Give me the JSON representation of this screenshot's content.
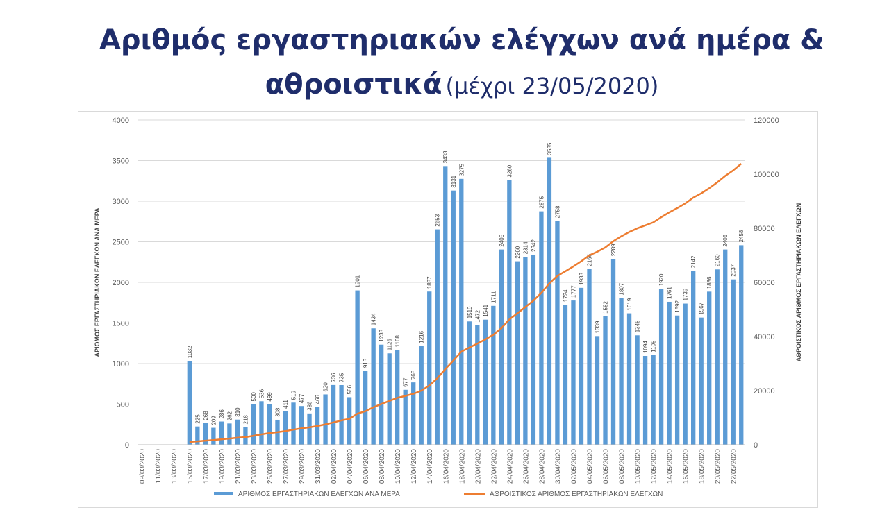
{
  "title": {
    "main_line1": "Αριθμός εργαστηριακών ελέγχων ανά ημέρα &",
    "main_line2": "αθροιστικά",
    "sub": "(μέχρι 23/05/2020)"
  },
  "colors": {
    "bars": "#5b9bd5",
    "line": "#ed7d31",
    "title": "#1f2d6b",
    "grid": "#d9d9d9",
    "axis_text": "#595959"
  },
  "chart_data": {
    "type": "bar",
    "title": "",
    "xlabel": "",
    "ylabel": "ΑΡΙΘΜΟΣ ΕΡΓΑΣΤΗΡΙΑΚΩΝ ΕΛΕΓΧΩΝ ΑΝΑ ΜΕΡΑ",
    "y2label": "ΑΘΡΟΙΣΤΙΚΟΣ ΑΡΙΘΜΟΣ ΕΡΓΑΣΤΗΡΙΑΚΩΝ ΕΛΕΓΧΩΝ",
    "ylim": [
      0,
      4000
    ],
    "y2lim": [
      0,
      120000
    ],
    "yticks": [
      0,
      500,
      1000,
      1500,
      2000,
      2500,
      3000,
      3500,
      4000
    ],
    "y2ticks": [
      0,
      20000,
      40000,
      60000,
      80000,
      100000,
      120000
    ],
    "grid": true,
    "legend_position": "bottom",
    "categories": [
      "09/03/2020",
      "10/03/2020",
      "11/03/2020",
      "12/03/2020",
      "13/03/2020",
      "14/03/2020",
      "15/03/2020",
      "16/03/2020",
      "17/03/2020",
      "18/03/2020",
      "19/03/2020",
      "20/03/2020",
      "21/03/2020",
      "22/03/2020",
      "23/03/2020",
      "24/03/2020",
      "25/03/2020",
      "26/03/2020",
      "27/03/2020",
      "28/03/2020",
      "29/03/2020",
      "30/03/2020",
      "31/03/2020",
      "01/04/2020",
      "02/04/2020",
      "03/04/2020",
      "04/04/2020",
      "05/04/2020",
      "06/04/2020",
      "07/04/2020",
      "08/04/2020",
      "09/04/2020",
      "10/04/2020",
      "11/04/2020",
      "12/04/2020",
      "13/04/2020",
      "14/04/2020",
      "15/04/2020",
      "16/04/2020",
      "17/04/2020",
      "18/04/2020",
      "19/04/2020",
      "20/04/2020",
      "21/04/2020",
      "22/04/2020",
      "23/04/2020",
      "24/04/2020",
      "25/04/2020",
      "26/04/2020",
      "27/04/2020",
      "28/04/2020",
      "29/04/2020",
      "30/04/2020",
      "01/05/2020",
      "02/05/2020",
      "03/05/2020",
      "04/05/2020",
      "05/05/2020",
      "06/05/2020",
      "07/05/2020",
      "08/05/2020",
      "09/05/2020",
      "10/05/2020",
      "11/05/2020",
      "12/05/2020",
      "13/05/2020",
      "14/05/2020",
      "15/05/2020",
      "16/05/2020",
      "17/05/2020",
      "18/05/2020",
      "19/05/2020",
      "20/05/2020",
      "21/05/2020",
      "22/05/2020",
      "23/05/2020"
    ],
    "xtick_labels": [
      "09/03/2020",
      "",
      "11/03/2020",
      "",
      "13/03/2020",
      "",
      "15/03/2020",
      "",
      "17/03/2020",
      "",
      "19/03/2020",
      "",
      "21/03/2020",
      "",
      "23/03/2020",
      "",
      "25/03/2020",
      "",
      "27/03/2020",
      "",
      "29/03/2020",
      "",
      "31/03/2020",
      "",
      "02/04/2020",
      "",
      "04/04/2020",
      "",
      "06/04/2020",
      "",
      "08/04/2020",
      "",
      "10/04/2020",
      "",
      "12/04/2020",
      "",
      "14/04/2020",
      "",
      "16/04/2020",
      "",
      "18/04/2020",
      "",
      "20/04/2020",
      "",
      "22/04/2020",
      "",
      "24/04/2020",
      "",
      "26/04/2020",
      "",
      "28/04/2020",
      "",
      "30/04/2020",
      "",
      "02/05/2020",
      "",
      "04/05/2020",
      "",
      "06/05/2020",
      "",
      "08/05/2020",
      "",
      "10/05/2020",
      "",
      "12/05/2020",
      "",
      "14/05/2020",
      "",
      "16/05/2020",
      "",
      "18/05/2020",
      "",
      "20/05/2020",
      "",
      "22/05/2020",
      ""
    ],
    "series": [
      {
        "name": "ΑΡΙΘΜΟΣ ΕΡΓΑΣΤΗΡΙΑΚΩΝ ΕΛΕΓΧΩΝ ΑΝΑ ΜΕΡΑ",
        "type": "bar",
        "axis": "left",
        "values": [
          null,
          null,
          null,
          null,
          null,
          null,
          1032,
          225,
          268,
          209,
          286,
          262,
          310,
          218,
          500,
          536,
          499,
          308,
          411,
          519,
          477,
          386,
          466,
          620,
          736,
          735,
          586,
          1901,
          913,
          1434,
          1233,
          1126,
          1168,
          677,
          768,
          1216,
          1887,
          2653,
          3433,
          3131,
          3275,
          1519,
          1472,
          1541,
          1711,
          2405,
          3260,
          2260,
          2314,
          2342,
          2875,
          3535,
          2758,
          1724,
          1777,
          1933,
          2166,
          1339,
          1582,
          2289,
          1807,
          1619,
          1348,
          1094,
          1105,
          1920,
          1761,
          1592,
          1739,
          2142,
          1567,
          1886,
          2160,
          2405,
          2037,
          2458
        ],
        "labels": [
          "",
          "",
          "",
          "",
          "",
          "",
          "1032",
          "225",
          "268",
          "209",
          "286",
          "262",
          "310",
          "218",
          "500",
          "536",
          "499",
          "308",
          "411",
          "519",
          "477",
          "386",
          "466",
          "620",
          "736",
          "735",
          "586",
          "1901",
          "913",
          "1434",
          "1233",
          "1126",
          "1168",
          "677",
          "768",
          "1216",
          "1887",
          "2653",
          "3433",
          "3131",
          "3275",
          "1519",
          "1472",
          "1541",
          "1711",
          "2405",
          "3260",
          "2260",
          "2314",
          "2342",
          "2875",
          "3535",
          "2758",
          "1724",
          "1777",
          "1933",
          "2166",
          "1339",
          "1582",
          "2289",
          "1807",
          "1619",
          "1348",
          "1094",
          "1105",
          "1920",
          "1761",
          "1592",
          "1739",
          "2142",
          "1567",
          "1886",
          "2160",
          "2405",
          "2037",
          "2458"
        ]
      },
      {
        "name": "ΑΘΡΟΙΣΤΙΚΟΣ ΑΡΙΘΜΟΣ ΕΡΓΑΣΤΗΡΙΑΚΩΝ ΕΛΕΓΧΩΝ",
        "type": "line",
        "axis": "right",
        "values": [
          null,
          null,
          null,
          null,
          null,
          null,
          1032,
          1257,
          1525,
          1734,
          2020,
          2282,
          2592,
          2810,
          3310,
          3846,
          4345,
          4653,
          5064,
          5583,
          6060,
          6446,
          6912,
          7532,
          8268,
          9003,
          9589,
          11490,
          12403,
          13837,
          15070,
          16196,
          17364,
          18041,
          18809,
          20025,
          21912,
          24565,
          27998,
          31129,
          34404,
          35923,
          37395,
          38936,
          40647,
          43052,
          46312,
          48572,
          50886,
          53228,
          56103,
          59638,
          62396,
          64120,
          65897,
          67830,
          69996,
          71335,
          72917,
          75206,
          77013,
          78632,
          79980,
          81074,
          82179,
          84099,
          85860,
          87452,
          89191,
          91333,
          92900,
          94786,
          96946,
          99351,
          101388,
          103846
        ]
      }
    ]
  }
}
